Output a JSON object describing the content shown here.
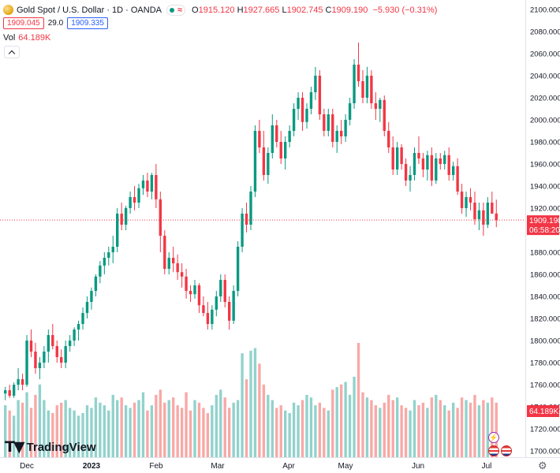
{
  "legend": {
    "symbol": "Gold Spot / U.S. Dollar · 1D · OANDA",
    "open_key": "O",
    "open": "1915.120",
    "high_key": "H",
    "high": "1927.665",
    "low_key": "L",
    "low": "1902.745",
    "close_key": "C",
    "close": "1909.190",
    "change": "−5.930 (−0.31%)",
    "sell_price": "1909.045",
    "spread": "29.0",
    "buy_price": "1909.335",
    "volume_label": "Vol",
    "volume_value": "64.189K"
  },
  "price_axis": {
    "ticks": [
      "2100.000",
      "2080.000",
      "2060.000",
      "2040.000",
      "2020.000",
      "2000.000",
      "1980.000",
      "1960.000",
      "1940.000",
      "1920.000",
      "1900.000",
      "1880.000",
      "1860.000",
      "1840.000",
      "1820.000",
      "1800.000",
      "1780.000",
      "1760.000",
      "1740.000",
      "1720.000",
      "1700.000"
    ],
    "last_price_label": "1909.190",
    "countdown_label": "06:58:20",
    "volume_label": "64.189K"
  },
  "time_axis": {
    "labels": [
      "Dec",
      "2023",
      "Feb",
      "Mar",
      "Apr",
      "May",
      "Jun",
      "Jul"
    ]
  },
  "branding": {
    "logo_text": "TradingView"
  },
  "colors": {
    "up": "#089981",
    "down": "#f23645",
    "up_vol": "#92d2cc",
    "down_vol": "#f7a9a7",
    "axis_text": "#131722",
    "grid": "#f0f3fa"
  },
  "chart_data": {
    "type": "candlestick",
    "title": "Gold Spot / U.S. Dollar · 1D · OANDA",
    "ylim": [
      1700,
      2100
    ],
    "price_scale": "linear",
    "grid": false,
    "last_close": 1909.19,
    "series": [
      {
        "name": "Gold Spot / U.S. Dollar",
        "ohlc": [
          [
            1752,
            1758,
            1746,
            1755
          ],
          [
            1755,
            1760,
            1748,
            1750
          ],
          [
            1750,
            1762,
            1748,
            1760
          ],
          [
            1760,
            1775,
            1755,
            1765
          ],
          [
            1765,
            1770,
            1755,
            1760
          ],
          [
            1760,
            1805,
            1758,
            1800
          ],
          [
            1800,
            1810,
            1785,
            1790
          ],
          [
            1790,
            1798,
            1770,
            1775
          ],
          [
            1775,
            1785,
            1765,
            1780
          ],
          [
            1780,
            1795,
            1775,
            1790
          ],
          [
            1790,
            1810,
            1780,
            1805
          ],
          [
            1805,
            1815,
            1792,
            1795
          ],
          [
            1795,
            1800,
            1780,
            1785
          ],
          [
            1785,
            1792,
            1775,
            1780
          ],
          [
            1780,
            1800,
            1775,
            1795
          ],
          [
            1795,
            1805,
            1790,
            1800
          ],
          [
            1800,
            1812,
            1795,
            1810
          ],
          [
            1810,
            1818,
            1800,
            1815
          ],
          [
            1815,
            1830,
            1810,
            1825
          ],
          [
            1825,
            1840,
            1820,
            1835
          ],
          [
            1835,
            1848,
            1828,
            1845
          ],
          [
            1845,
            1860,
            1840,
            1858
          ],
          [
            1858,
            1872,
            1852,
            1868
          ],
          [
            1868,
            1880,
            1860,
            1875
          ],
          [
            1875,
            1885,
            1868,
            1880
          ],
          [
            1880,
            1895,
            1870,
            1885
          ],
          [
            1885,
            1920,
            1880,
            1915
          ],
          [
            1915,
            1925,
            1900,
            1905
          ],
          [
            1905,
            1922,
            1900,
            1920
          ],
          [
            1920,
            1935,
            1915,
            1930
          ],
          [
            1930,
            1940,
            1918,
            1925
          ],
          [
            1925,
            1942,
            1920,
            1938
          ],
          [
            1938,
            1950,
            1932,
            1945
          ],
          [
            1945,
            1952,
            1930,
            1935
          ],
          [
            1935,
            1952,
            1928,
            1950
          ],
          [
            1950,
            1960,
            1920,
            1928
          ],
          [
            1928,
            1935,
            1880,
            1895
          ],
          [
            1895,
            1900,
            1860,
            1865
          ],
          [
            1865,
            1880,
            1860,
            1875
          ],
          [
            1875,
            1885,
            1862,
            1870
          ],
          [
            1870,
            1878,
            1855,
            1862
          ],
          [
            1862,
            1870,
            1848,
            1858
          ],
          [
            1858,
            1865,
            1838,
            1845
          ],
          [
            1845,
            1850,
            1835,
            1842
          ],
          [
            1842,
            1855,
            1838,
            1850
          ],
          [
            1850,
            1852,
            1825,
            1832
          ],
          [
            1832,
            1840,
            1822,
            1825
          ],
          [
            1825,
            1835,
            1810,
            1815
          ],
          [
            1815,
            1832,
            1810,
            1828
          ],
          [
            1828,
            1845,
            1822,
            1840
          ],
          [
            1840,
            1860,
            1835,
            1855
          ],
          [
            1855,
            1860,
            1830,
            1835
          ],
          [
            1835,
            1840,
            1810,
            1818
          ],
          [
            1818,
            1850,
            1815,
            1845
          ],
          [
            1845,
            1890,
            1840,
            1885
          ],
          [
            1885,
            1920,
            1880,
            1915
          ],
          [
            1915,
            1925,
            1898,
            1905
          ],
          [
            1905,
            1940,
            1900,
            1935
          ],
          [
            1935,
            1995,
            1930,
            1990
          ],
          [
            1990,
            2000,
            1970,
            1975
          ],
          [
            1975,
            1990,
            1945,
            1950
          ],
          [
            1950,
            1975,
            1942,
            1970
          ],
          [
            1970,
            2005,
            1965,
            1995
          ],
          [
            1995,
            2000,
            1975,
            1980
          ],
          [
            1980,
            1990,
            1960,
            1965
          ],
          [
            1965,
            1985,
            1955,
            1980
          ],
          [
            1980,
            1995,
            1975,
            1990
          ],
          [
            1990,
            2015,
            1985,
            2010
          ],
          [
            2010,
            2025,
            2000,
            2020
          ],
          [
            2020,
            2025,
            1990,
            1998
          ],
          [
            1998,
            2015,
            1992,
            2010
          ],
          [
            2010,
            2030,
            2005,
            2025
          ],
          [
            2025,
            2048,
            2018,
            2040
          ],
          [
            2040,
            2045,
            2000,
            2005
          ],
          [
            2005,
            2010,
            1985,
            1990
          ],
          [
            1990,
            2010,
            1985,
            2005
          ],
          [
            2005,
            2010,
            1975,
            1980
          ],
          [
            1980,
            1995,
            1970,
            1990
          ],
          [
            1990,
            2000,
            1978,
            1985
          ],
          [
            1985,
            2005,
            1980,
            2000
          ],
          [
            2000,
            2020,
            1995,
            2015
          ],
          [
            2015,
            2055,
            2010,
            2050
          ],
          [
            2050,
            2070,
            2030,
            2035
          ],
          [
            2035,
            2045,
            2015,
            2020
          ],
          [
            2020,
            2048,
            2015,
            2040
          ],
          [
            2040,
            2045,
            2010,
            2015
          ],
          [
            2015,
            2025,
            2000,
            2010
          ],
          [
            2010,
            2020,
            1998,
            2018
          ],
          [
            2018,
            2022,
            1985,
            1990
          ],
          [
            1990,
            1998,
            1970,
            1975
          ],
          [
            1975,
            1985,
            1950,
            1955
          ],
          [
            1955,
            1980,
            1950,
            1975
          ],
          [
            1975,
            1978,
            1955,
            1960
          ],
          [
            1960,
            1965,
            1940,
            1945
          ],
          [
            1945,
            1958,
            1935,
            1950
          ],
          [
            1950,
            1975,
            1945,
            1970
          ],
          [
            1970,
            1985,
            1960,
            1965
          ],
          [
            1965,
            1970,
            1948,
            1955
          ],
          [
            1955,
            1972,
            1945,
            1968
          ],
          [
            1968,
            1975,
            1940,
            1945
          ],
          [
            1945,
            1970,
            1942,
            1965
          ],
          [
            1965,
            1970,
            1955,
            1960
          ],
          [
            1960,
            1972,
            1955,
            1968
          ],
          [
            1968,
            1975,
            1945,
            1950
          ],
          [
            1950,
            1962,
            1945,
            1958
          ],
          [
            1958,
            1965,
            1932,
            1935
          ],
          [
            1935,
            1942,
            1915,
            1920
          ],
          [
            1920,
            1935,
            1912,
            1930
          ],
          [
            1930,
            1938,
            1918,
            1925
          ],
          [
            1925,
            1935,
            1905,
            1910
          ],
          [
            1910,
            1925,
            1900,
            1918
          ],
          [
            1918,
            1925,
            1895,
            1905
          ],
          [
            1905,
            1930,
            1902,
            1925
          ],
          [
            1925,
            1935,
            1918,
            1915
          ],
          [
            1915.12,
            1927.665,
            1902.745,
            1909.19
          ]
        ]
      }
    ],
    "volume": {
      "name": "Vol",
      "values": [
        20,
        18,
        16,
        22,
        21,
        25,
        19,
        24,
        28,
        22,
        18,
        17,
        20,
        21,
        22,
        19,
        18,
        16,
        17,
        20,
        19,
        23,
        21,
        20,
        18,
        24,
        22,
        23,
        20,
        19,
        21,
        22,
        25,
        18,
        20,
        24,
        26,
        21,
        22,
        23,
        20,
        19,
        25,
        18,
        22,
        21,
        19,
        17,
        20,
        24,
        26,
        23,
        19,
        21,
        22,
        40,
        30,
        41,
        42,
        36,
        28,
        24,
        22,
        19,
        20,
        18,
        17,
        21,
        20,
        22,
        24,
        23,
        20,
        21,
        19,
        18,
        26,
        27,
        28,
        29,
        24,
        31,
        44,
        25,
        23,
        22,
        20,
        19,
        21,
        24,
        22,
        23,
        20,
        19,
        18,
        22,
        20,
        21,
        19,
        23,
        24,
        22,
        20,
        18,
        21,
        19,
        23,
        22,
        21,
        24,
        20,
        22,
        21,
        23,
        21
      ],
      "last": "64.189K"
    },
    "x_labels": [
      "Dec",
      "2023",
      "Feb",
      "Mar",
      "Apr",
      "May",
      "Jun",
      "Jul"
    ]
  }
}
